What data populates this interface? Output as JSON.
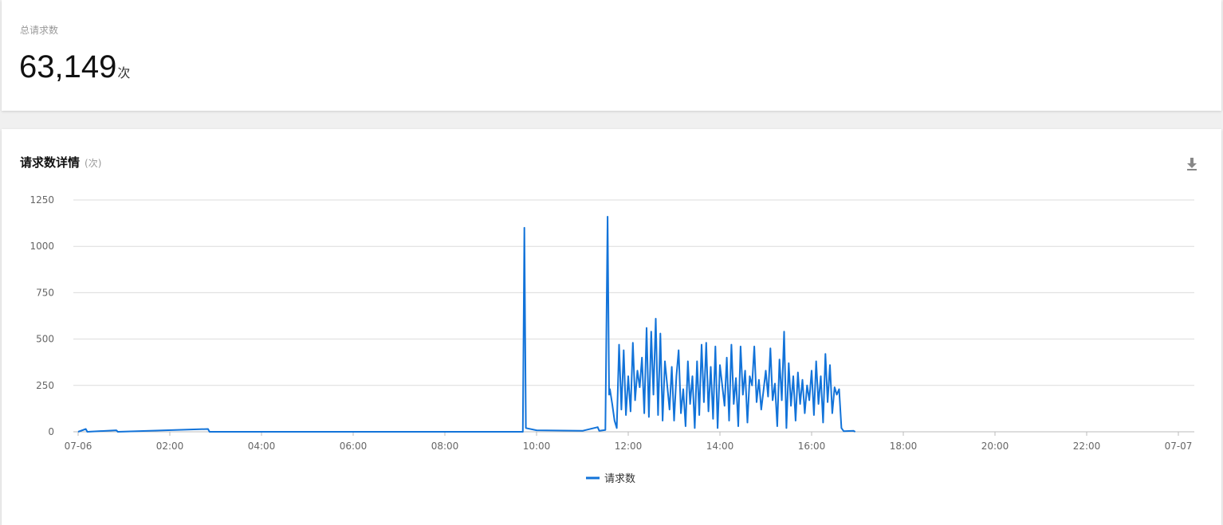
{
  "summary": {
    "label": "总请求数",
    "value": "63,149",
    "unit": "次"
  },
  "detail": {
    "title": "请求数详情",
    "unit": "(次)",
    "download_icon": "download-icon"
  },
  "colors": {
    "series": "#1273d9",
    "grid": "#dcdcdc",
    "axis_text": "#666"
  },
  "chart_data": {
    "type": "line",
    "title": "",
    "xlabel": "",
    "ylabel": "",
    "ylim": [
      0,
      1250
    ],
    "y_ticks": [
      "0",
      "250",
      "500",
      "750",
      "1000",
      "1250"
    ],
    "x_ticks": [
      "07-06",
      "02:00",
      "04:00",
      "06:00",
      "08:00",
      "10:00",
      "12:00",
      "14:00",
      "16:00",
      "18:00",
      "20:00",
      "22:00",
      "07-07"
    ],
    "grid": true,
    "legend": {
      "position": "bottom",
      "entries": [
        "请求数"
      ]
    },
    "series": [
      {
        "name": "请求数",
        "points": [
          [
            "00:00",
            0
          ],
          [
            "00:10",
            15
          ],
          [
            "00:12",
            0
          ],
          [
            "00:50",
            8
          ],
          [
            "00:52",
            0
          ],
          [
            "02:50",
            15
          ],
          [
            "02:52",
            0
          ],
          [
            "09:42",
            0
          ],
          [
            "09:44",
            1100
          ],
          [
            "09:46",
            20
          ],
          [
            "10:00",
            8
          ],
          [
            "11:00",
            5
          ],
          [
            "11:20",
            25
          ],
          [
            "11:22",
            5
          ],
          [
            "11:30",
            10
          ],
          [
            "11:33",
            1160
          ],
          [
            "11:35",
            200
          ],
          [
            "11:36",
            230
          ],
          [
            "11:39",
            150
          ],
          [
            "11:42",
            60
          ],
          [
            "11:45",
            20
          ],
          [
            "11:48",
            470
          ],
          [
            "11:51",
            120
          ],
          [
            "11:54",
            440
          ],
          [
            "11:57",
            90
          ],
          [
            "12:00",
            300
          ],
          [
            "12:03",
            110
          ],
          [
            "12:06",
            480
          ],
          [
            "12:09",
            170
          ],
          [
            "12:12",
            330
          ],
          [
            "12:15",
            240
          ],
          [
            "12:18",
            400
          ],
          [
            "12:21",
            100
          ],
          [
            "12:24",
            560
          ],
          [
            "12:27",
            80
          ],
          [
            "12:30",
            540
          ],
          [
            "12:33",
            200
          ],
          [
            "12:36",
            610
          ],
          [
            "12:39",
            90
          ],
          [
            "12:42",
            530
          ],
          [
            "12:45",
            60
          ],
          [
            "12:48",
            380
          ],
          [
            "12:51",
            250
          ],
          [
            "12:54",
            120
          ],
          [
            "12:57",
            350
          ],
          [
            "13:00",
            60
          ],
          [
            "13:03",
            300
          ],
          [
            "13:06",
            440
          ],
          [
            "13:09",
            100
          ],
          [
            "13:12",
            230
          ],
          [
            "13:15",
            30
          ],
          [
            "13:18",
            380
          ],
          [
            "13:21",
            150
          ],
          [
            "13:24",
            300
          ],
          [
            "13:27",
            20
          ],
          [
            "13:30",
            380
          ],
          [
            "13:33",
            90
          ],
          [
            "13:36",
            470
          ],
          [
            "13:39",
            160
          ],
          [
            "13:42",
            480
          ],
          [
            "13:45",
            110
          ],
          [
            "13:48",
            350
          ],
          [
            "13:51",
            70
          ],
          [
            "13:54",
            460
          ],
          [
            "13:57",
            20
          ],
          [
            "14:00",
            360
          ],
          [
            "14:03",
            250
          ],
          [
            "14:06",
            140
          ],
          [
            "14:09",
            400
          ],
          [
            "14:12",
            60
          ],
          [
            "14:15",
            470
          ],
          [
            "14:18",
            150
          ],
          [
            "14:21",
            290
          ],
          [
            "14:24",
            30
          ],
          [
            "14:27",
            460
          ],
          [
            "14:30",
            200
          ],
          [
            "14:33",
            330
          ],
          [
            "14:36",
            50
          ],
          [
            "14:39",
            300
          ],
          [
            "14:42",
            250
          ],
          [
            "14:45",
            460
          ],
          [
            "14:48",
            160
          ],
          [
            "14:51",
            280
          ],
          [
            "14:54",
            120
          ],
          [
            "14:57",
            220
          ],
          [
            "15:00",
            330
          ],
          [
            "15:03",
            190
          ],
          [
            "15:06",
            450
          ],
          [
            "15:09",
            170
          ],
          [
            "15:12",
            260
          ],
          [
            "15:15",
            30
          ],
          [
            "15:18",
            390
          ],
          [
            "15:21",
            170
          ],
          [
            "15:24",
            540
          ],
          [
            "15:27",
            20
          ],
          [
            "15:30",
            370
          ],
          [
            "15:33",
            140
          ],
          [
            "15:36",
            300
          ],
          [
            "15:39",
            60
          ],
          [
            "15:42",
            320
          ],
          [
            "15:45",
            150
          ],
          [
            "15:48",
            280
          ],
          [
            "15:51",
            100
          ],
          [
            "15:54",
            250
          ],
          [
            "15:57",
            170
          ],
          [
            "16:00",
            330
          ],
          [
            "16:03",
            90
          ],
          [
            "16:06",
            380
          ],
          [
            "16:09",
            150
          ],
          [
            "16:12",
            300
          ],
          [
            "16:15",
            50
          ],
          [
            "16:18",
            420
          ],
          [
            "16:21",
            160
          ],
          [
            "16:24",
            360
          ],
          [
            "16:27",
            100
          ],
          [
            "16:30",
            240
          ],
          [
            "16:33",
            200
          ],
          [
            "16:36",
            230
          ],
          [
            "16:39",
            20
          ],
          [
            "16:42",
            3
          ],
          [
            "16:55",
            5
          ],
          [
            "16:57",
            0
          ]
        ]
      }
    ]
  }
}
